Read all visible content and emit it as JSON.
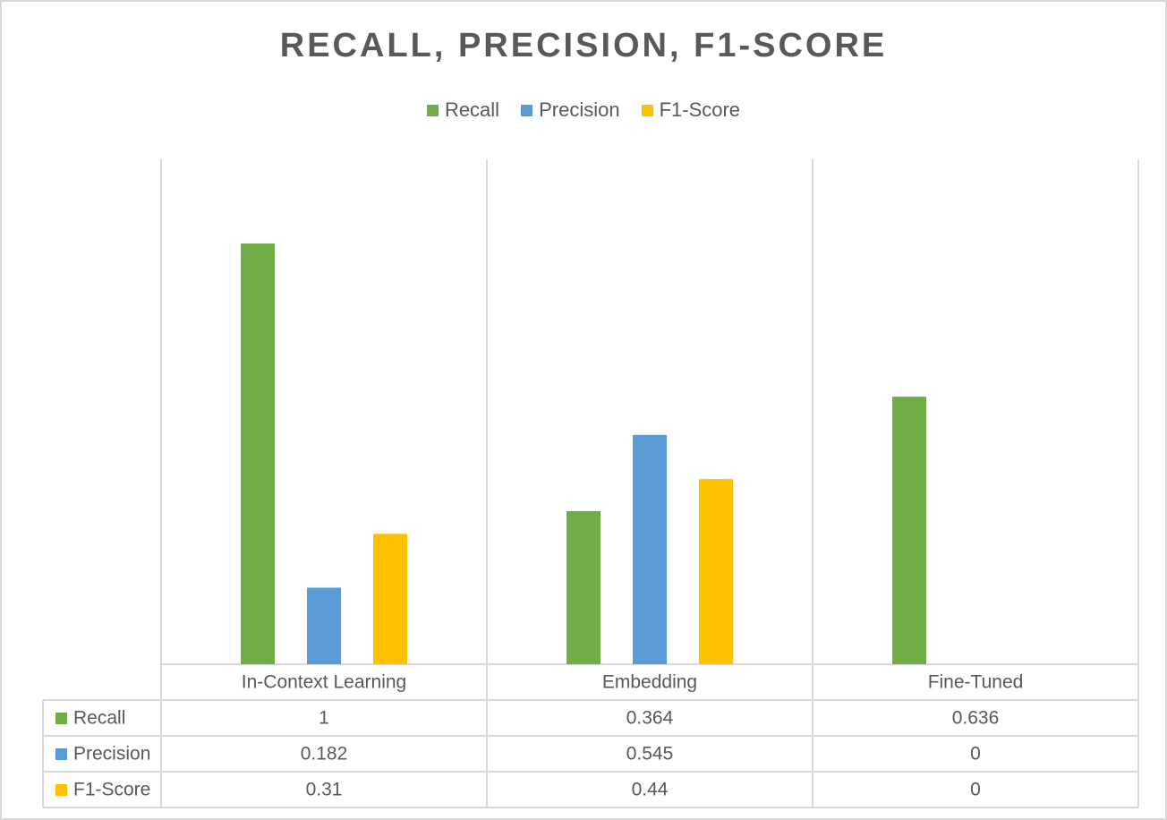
{
  "chart_data": {
    "type": "bar",
    "title": "RECALL,  PRECISION,  F1-SCORE",
    "categories": [
      "In-Context Learning",
      "Embedding",
      "Fine-Tuned"
    ],
    "series": [
      {
        "name": "Recall",
        "color": "#70ad47",
        "values": [
          1,
          0.364,
          0.636
        ],
        "labels": [
          "1",
          "0.364",
          "0.636"
        ]
      },
      {
        "name": "Precision",
        "color": "#5b9bd5",
        "values": [
          0.182,
          0.545,
          0
        ],
        "labels": [
          "0.182",
          "0.545",
          "0"
        ]
      },
      {
        "name": "F1-Score",
        "color": "#ffc000",
        "values": [
          0.31,
          0.44,
          0
        ],
        "labels": [
          "0.31",
          "0.44",
          "0"
        ]
      }
    ],
    "ylim": [
      0,
      1.2
    ],
    "grid": "vertical category separators",
    "legend_position": "top",
    "data_table": true
  }
}
